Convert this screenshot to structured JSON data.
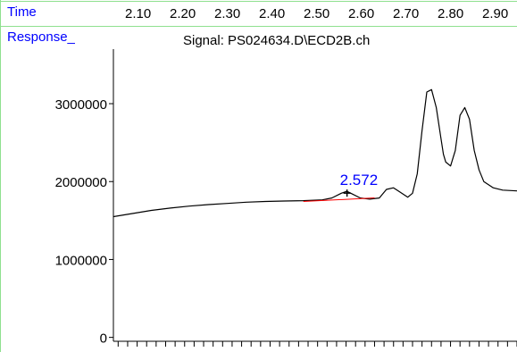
{
  "header": {
    "time_label": "Time",
    "response_label": "Response_",
    "signal_title": "Signal: PS024634.D\\ECD2B.ch"
  },
  "colors": {
    "trace": "#000000",
    "baseline": "#ff0000",
    "peak_label": "#0000ff",
    "header_labels": "#0000ff",
    "frame": "#8fe08f"
  },
  "chart_data": {
    "type": "line",
    "title": "Signal: PS024634.D\\ECD2B.ch",
    "xlabel": "Time",
    "ylabel": "Response_",
    "x_ticks": [
      2.1,
      2.2,
      2.3,
      2.4,
      2.5,
      2.6,
      2.7,
      2.8,
      2.9
    ],
    "x_tick_labels": [
      "2.10",
      "2.20",
      "2.30",
      "2.40",
      "2.50",
      "2.60",
      "2.70",
      "2.80",
      "2.90"
    ],
    "xlim": [
      2.08,
      2.93
    ],
    "y_ticks": [
      0,
      1000000,
      2000000,
      3000000
    ],
    "y_tick_labels": [
      "0",
      "1000000",
      "2000000",
      "3000000"
    ],
    "ylim": [
      -50000,
      3700000
    ],
    "grid": false,
    "series": [
      {
        "x": [
          2.08,
          2.12,
          2.16,
          2.2,
          2.24,
          2.28,
          2.32,
          2.36,
          2.4,
          2.44,
          2.48,
          2.52,
          2.54,
          2.56,
          2.572,
          2.58,
          2.6,
          2.62,
          2.64,
          2.655,
          2.67,
          2.68,
          2.7,
          2.71,
          2.72,
          2.73,
          2.74,
          2.75,
          2.76,
          2.77,
          2.775,
          2.78,
          2.79,
          2.8,
          2.81,
          2.82,
          2.83,
          2.84,
          2.85,
          2.86,
          2.88,
          2.9,
          2.93
        ],
        "y": [
          1550000,
          1590000,
          1630000,
          1660000,
          1685000,
          1705000,
          1720000,
          1735000,
          1745000,
          1750000,
          1755000,
          1765000,
          1790000,
          1850000,
          1875000,
          1850000,
          1790000,
          1775000,
          1790000,
          1900000,
          1920000,
          1880000,
          1800000,
          1850000,
          2100000,
          2650000,
          3150000,
          3180000,
          2950000,
          2550000,
          2350000,
          2250000,
          2200000,
          2400000,
          2850000,
          2950000,
          2800000,
          2400000,
          2150000,
          2000000,
          1920000,
          1890000,
          1880000
        ]
      }
    ],
    "annotations": [
      {
        "text": "2.572",
        "x": 2.572,
        "y": 1875000
      }
    ],
    "baseline": {
      "x": [
        2.48,
        2.63
      ],
      "y": [
        1745000,
        1790000
      ]
    }
  }
}
